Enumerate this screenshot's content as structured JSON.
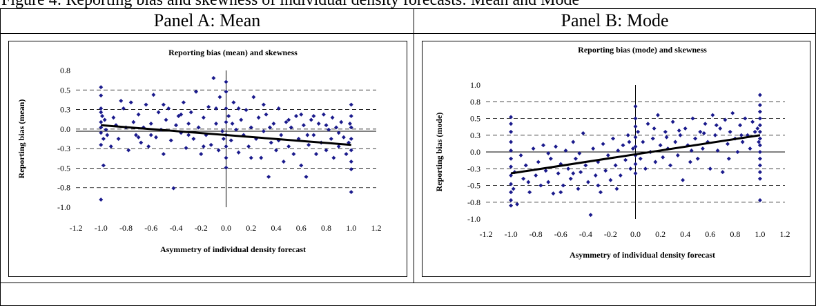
{
  "caption_fragment": "Figure 4: Reporting bias and skewness of individual density forecasts: Mean and Mode",
  "panels": [
    {
      "header": "Panel A: Mean"
    },
    {
      "header": "Panel B: Mode"
    }
  ],
  "chart_data": [
    {
      "type": "scatter",
      "title": "Reporting bias (mean) and skewness",
      "xlabel": "Asymmetry of individual density forecast",
      "ylabel": "Reporting bias (mean)",
      "xlim": [
        -1.2,
        1.2
      ],
      "ylim": [
        -1.0,
        0.8
      ],
      "xticks": [
        "-1.2",
        "-1.0",
        "-0.8",
        "-0.6",
        "-0.4",
        "-0.2",
        "0.0",
        "0.2",
        "0.4",
        "0.6",
        "0.8",
        "1.0",
        "1.2"
      ],
      "yticks": [
        "0.8",
        "0.5",
        "0.3",
        "0.0",
        "-0.3",
        "-0.5",
        "-0.8",
        "-1.0"
      ],
      "trendline": {
        "x": [
          -1.0,
          1.0
        ],
        "y": [
          0.08,
          -0.18
        ]
      },
      "marker_color": "#1a1a8c",
      "grid": "horizontal dashed",
      "points": [
        [
          -1.0,
          0.58
        ],
        [
          -1.0,
          0.47
        ],
        [
          -1.0,
          -0.9
        ],
        [
          -0.98,
          -0.45
        ],
        [
          -1.0,
          0.3
        ],
        [
          -1.0,
          0.25
        ],
        [
          -0.99,
          0.2
        ],
        [
          -1.0,
          0.12
        ],
        [
          -1.0,
          0.05
        ],
        [
          -1.0,
          -0.02
        ],
        [
          -0.98,
          -0.1
        ],
        [
          -1.0,
          -0.18
        ],
        [
          -0.97,
          0.15
        ],
        [
          -0.96,
          0.02
        ],
        [
          -0.95,
          -0.05
        ],
        [
          -0.9,
          0.18
        ],
        [
          -0.88,
          0.08
        ],
        [
          -0.86,
          -0.1
        ],
        [
          -0.82,
          0.3
        ],
        [
          -0.8,
          0.05
        ],
        [
          -0.78,
          -0.25
        ],
        [
          -0.76,
          0.38
        ],
        [
          -0.74,
          0.12
        ],
        [
          -0.72,
          -0.05
        ],
        [
          -0.7,
          0.22
        ],
        [
          -0.68,
          -0.15
        ],
        [
          -0.66,
          0.05
        ],
        [
          -0.64,
          0.35
        ],
        [
          -0.62,
          -0.2
        ],
        [
          -0.6,
          0.1
        ],
        [
          -0.58,
          0.48
        ],
        [
          -0.56,
          -0.08
        ],
        [
          -0.54,
          0.25
        ],
        [
          -0.52,
          0.02
        ],
        [
          -0.5,
          -0.3
        ],
        [
          -0.48,
          0.15
        ],
        [
          -0.46,
          0.3
        ],
        [
          -0.44,
          -0.12
        ],
        [
          -0.42,
          -0.75
        ],
        [
          -0.4,
          0.08
        ],
        [
          -0.38,
          0.2
        ],
        [
          -0.36,
          -0.02
        ],
        [
          -0.34,
          0.38
        ],
        [
          -0.32,
          -0.22
        ],
        [
          -0.3,
          0.1
        ],
        [
          -0.28,
          0.25
        ],
        [
          -0.26,
          -0.1
        ],
        [
          -0.24,
          0.52
        ],
        [
          -0.22,
          0.05
        ],
        [
          -0.2,
          -0.3
        ],
        [
          -0.18,
          0.18
        ],
        [
          -0.16,
          -0.05
        ],
        [
          -0.14,
          0.32
        ],
        [
          -0.12,
          -0.18
        ],
        [
          -0.1,
          0.7
        ],
        [
          -0.08,
          0.1
        ],
        [
          -0.06,
          -0.25
        ],
        [
          -0.05,
          0.45
        ],
        [
          -0.03,
          0.0
        ],
        [
          -0.02,
          -0.1
        ],
        [
          0.0,
          0.65
        ],
        [
          0.0,
          0.52
        ],
        [
          0.0,
          0.3
        ],
        [
          0.0,
          0.12
        ],
        [
          0.0,
          -0.05
        ],
        [
          0.0,
          -0.2
        ],
        [
          0.0,
          -0.35
        ],
        [
          0.0,
          -0.48
        ],
        [
          0.02,
          0.2
        ],
        [
          0.04,
          -0.12
        ],
        [
          0.06,
          0.38
        ],
        [
          0.08,
          0.02
        ],
        [
          0.1,
          -0.28
        ],
        [
          0.12,
          0.15
        ],
        [
          0.14,
          -0.05
        ],
        [
          0.16,
          0.28
        ],
        [
          0.18,
          -0.2
        ],
        [
          0.2,
          0.05
        ],
        [
          0.22,
          0.45
        ],
        [
          0.24,
          -0.1
        ],
        [
          0.26,
          0.18
        ],
        [
          0.28,
          -0.35
        ],
        [
          0.3,
          0.0
        ],
        [
          0.32,
          0.22
        ],
        [
          0.34,
          -0.6
        ],
        [
          0.36,
          -0.15
        ],
        [
          0.38,
          0.1
        ],
        [
          0.4,
          -0.25
        ],
        [
          0.42,
          0.3
        ],
        [
          0.44,
          -0.05
        ],
        [
          0.46,
          -0.4
        ],
        [
          0.48,
          0.12
        ],
        [
          0.5,
          -0.2
        ],
        [
          0.52,
          0.05
        ],
        [
          0.54,
          -0.3
        ],
        [
          0.56,
          0.2
        ],
        [
          0.58,
          -0.1
        ],
        [
          0.6,
          -0.45
        ],
        [
          0.62,
          0.08
        ],
        [
          0.64,
          -0.6
        ],
        [
          0.66,
          -0.18
        ],
        [
          0.68,
          0.15
        ],
        [
          0.7,
          -0.05
        ],
        [
          0.72,
          -0.3
        ],
        [
          0.74,
          0.1
        ],
        [
          0.76,
          -0.15
        ],
        [
          0.78,
          0.22
        ],
        [
          0.8,
          -0.25
        ],
        [
          0.82,
          0.02
        ],
        [
          0.84,
          -0.1
        ],
        [
          0.86,
          -0.35
        ],
        [
          0.88,
          0.05
        ],
        [
          0.9,
          -0.2
        ],
        [
          0.92,
          0.12
        ],
        [
          0.94,
          -0.08
        ],
        [
          0.96,
          -0.3
        ],
        [
          1.0,
          0.35
        ],
        [
          1.0,
          0.2
        ],
        [
          1.0,
          0.05
        ],
        [
          1.0,
          -0.1
        ],
        [
          1.0,
          -0.25
        ],
        [
          1.0,
          -0.4
        ],
        [
          1.0,
          -0.5
        ],
        [
          1.0,
          -0.8
        ],
        [
          0.98,
          -0.15
        ],
        [
          0.99,
          0.1
        ],
        [
          -0.84,
          0.4
        ],
        [
          -0.7,
          -0.08
        ],
        [
          -0.5,
          0.35
        ],
        [
          -0.36,
          0.22
        ],
        [
          -0.18,
          -0.2
        ],
        [
          -0.08,
          0.3
        ],
        [
          0.1,
          0.3
        ],
        [
          0.2,
          -0.35
        ],
        [
          0.3,
          0.35
        ],
        [
          0.42,
          -0.12
        ],
        [
          0.5,
          0.15
        ],
        [
          0.6,
          0.22
        ],
        [
          0.7,
          0.2
        ],
        [
          0.8,
          0.08
        ],
        [
          0.9,
          -0.02
        ],
        [
          -0.92,
          -0.2
        ],
        [
          -0.6,
          -0.05
        ],
        [
          -0.3,
          -0.05
        ],
        [
          0.05,
          0.1
        ],
        [
          0.35,
          0.05
        ],
        [
          0.65,
          -0.05
        ],
        [
          0.85,
          0.18
        ]
      ]
    },
    {
      "type": "scatter",
      "title": "Reporting bias (mode) and skewness",
      "xlabel": "Asymmetry of individual density forecast",
      "ylabel": "Reporting bias (mode)",
      "xlim": [
        -1.2,
        1.2
      ],
      "ylim": [
        -1.0,
        1.0
      ],
      "xticks": [
        "-1.2",
        "-1.0",
        "-0.8",
        "-0.6",
        "-0.4",
        "-0.2",
        "0.0",
        "0.2",
        "0.4",
        "0.6",
        "0.8",
        "1.0",
        "1.2"
      ],
      "yticks": [
        "1.0",
        "0.8",
        "0.5",
        "0.3",
        "0.0",
        "-0.3",
        "-0.5",
        "-0.8",
        "-1.0"
      ],
      "trendline": {
        "x": [
          -1.0,
          1.0
        ],
        "y": [
          -0.32,
          0.25
        ]
      },
      "marker_color": "#1a1a8c",
      "grid": "horizontal dashed",
      "points": [
        [
          -1.0,
          0.52
        ],
        [
          -1.0,
          0.42
        ],
        [
          -1.0,
          0.3
        ],
        [
          -1.0,
          0.15
        ],
        [
          -1.0,
          0.02
        ],
        [
          -1.0,
          -0.1
        ],
        [
          -1.0,
          -0.22
        ],
        [
          -1.0,
          -0.35
        ],
        [
          -1.0,
          -0.48
        ],
        [
          -1.0,
          -0.6
        ],
        [
          -1.0,
          -0.72
        ],
        [
          -1.0,
          -0.8
        ],
        [
          -0.98,
          -0.55
        ],
        [
          -0.97,
          -0.3
        ],
        [
          -0.95,
          -0.78
        ],
        [
          -0.92,
          -0.05
        ],
        [
          -0.9,
          -0.4
        ],
        [
          -0.88,
          -0.2
        ],
        [
          -0.85,
          -0.6
        ],
        [
          -0.82,
          0.05
        ],
        [
          -0.8,
          -0.35
        ],
        [
          -0.78,
          -0.15
        ],
        [
          -0.76,
          -0.5
        ],
        [
          -0.74,
          0.1
        ],
        [
          -0.72,
          -0.28
        ],
        [
          -0.7,
          -0.45
        ],
        [
          -0.68,
          -0.1
        ],
        [
          -0.66,
          -0.62
        ],
        [
          -0.64,
          0.08
        ],
        [
          -0.62,
          -0.32
        ],
        [
          -0.6,
          -0.18
        ],
        [
          -0.58,
          -0.5
        ],
        [
          -0.56,
          0.02
        ],
        [
          -0.54,
          -0.25
        ],
        [
          -0.52,
          -0.4
        ],
        [
          -0.5,
          0.15
        ],
        [
          -0.48,
          -0.1
        ],
        [
          -0.46,
          -0.55
        ],
        [
          -0.44,
          -0.3
        ],
        [
          -0.42,
          0.28
        ],
        [
          -0.4,
          -0.2
        ],
        [
          -0.38,
          -0.45
        ],
        [
          -0.36,
          -0.94
        ],
        [
          -0.34,
          0.05
        ],
        [
          -0.32,
          -0.35
        ],
        [
          -0.3,
          -0.15
        ],
        [
          -0.28,
          -0.6
        ],
        [
          -0.26,
          0.12
        ],
        [
          -0.24,
          -0.28
        ],
        [
          -0.22,
          -0.05
        ],
        [
          -0.2,
          -0.42
        ],
        [
          -0.18,
          0.2
        ],
        [
          -0.16,
          -0.2
        ],
        [
          -0.14,
          0.02
        ],
        [
          -0.12,
          -0.35
        ],
        [
          -0.1,
          0.1
        ],
        [
          -0.08,
          -0.12
        ],
        [
          -0.06,
          0.25
        ],
        [
          -0.04,
          -0.25
        ],
        [
          -0.02,
          0.05
        ],
        [
          0.0,
          0.68
        ],
        [
          0.0,
          0.5
        ],
        [
          0.0,
          0.38
        ],
        [
          0.0,
          0.22
        ],
        [
          0.0,
          0.08
        ],
        [
          0.0,
          -0.05
        ],
        [
          0.0,
          -0.18
        ],
        [
          0.0,
          -0.32
        ],
        [
          0.02,
          0.3
        ],
        [
          0.04,
          -0.1
        ],
        [
          0.06,
          0.15
        ],
        [
          0.08,
          -0.25
        ],
        [
          0.1,
          0.42
        ],
        [
          0.12,
          0.0
        ],
        [
          0.14,
          0.2
        ],
        [
          0.16,
          -0.15
        ],
        [
          0.18,
          0.55
        ],
        [
          0.2,
          0.1
        ],
        [
          0.22,
          -0.08
        ],
        [
          0.24,
          0.3
        ],
        [
          0.26,
          0.05
        ],
        [
          0.28,
          -0.2
        ],
        [
          0.3,
          0.45
        ],
        [
          0.32,
          0.15
        ],
        [
          0.34,
          -0.05
        ],
        [
          0.36,
          0.25
        ],
        [
          0.38,
          -0.42
        ],
        [
          0.4,
          0.35
        ],
        [
          0.42,
          0.1
        ],
        [
          0.44,
          -0.15
        ],
        [
          0.46,
          0.5
        ],
        [
          0.48,
          0.2
        ],
        [
          0.5,
          -0.1
        ],
        [
          0.52,
          0.3
        ],
        [
          0.54,
          0.05
        ],
        [
          0.56,
          0.42
        ],
        [
          0.58,
          0.15
        ],
        [
          0.6,
          -0.25
        ],
        [
          0.62,
          0.55
        ],
        [
          0.64,
          0.25
        ],
        [
          0.66,
          0.02
        ],
        [
          0.68,
          0.35
        ],
        [
          0.7,
          -0.3
        ],
        [
          0.72,
          0.48
        ],
        [
          0.74,
          0.12
        ],
        [
          0.76,
          0.3
        ],
        [
          0.78,
          0.58
        ],
        [
          0.8,
          0.2
        ],
        [
          0.82,
          0.0
        ],
        [
          0.84,
          0.4
        ],
        [
          0.86,
          0.15
        ],
        [
          0.88,
          0.5
        ],
        [
          0.9,
          0.25
        ],
        [
          0.92,
          0.05
        ],
        [
          0.94,
          0.45
        ],
        [
          0.96,
          0.3
        ],
        [
          1.0,
          0.85
        ],
        [
          1.0,
          0.7
        ],
        [
          1.0,
          0.6
        ],
        [
          1.0,
          0.5
        ],
        [
          1.0,
          0.4
        ],
        [
          1.0,
          0.3
        ],
        [
          1.0,
          0.2
        ],
        [
          1.0,
          0.1
        ],
        [
          1.0,
          0.0
        ],
        [
          1.0,
          -0.1
        ],
        [
          1.0,
          -0.2
        ],
        [
          1.0,
          -0.3
        ],
        [
          1.0,
          -0.4
        ],
        [
          1.0,
          -0.72
        ],
        [
          0.98,
          0.35
        ],
        [
          0.99,
          0.15
        ],
        [
          -0.86,
          -0.45
        ],
        [
          -0.6,
          -0.6
        ],
        [
          -0.45,
          -0.02
        ],
        [
          -0.3,
          -0.5
        ],
        [
          -0.15,
          -0.55
        ],
        [
          -0.05,
          0.15
        ],
        [
          0.15,
          0.35
        ],
        [
          0.25,
          0.22
        ],
        [
          0.35,
          0.32
        ],
        [
          0.45,
          0.02
        ],
        [
          0.55,
          0.28
        ],
        [
          0.65,
          0.4
        ],
        [
          0.75,
          -0.1
        ],
        [
          0.85,
          0.25
        ],
        [
          -0.7,
          -0.02
        ],
        [
          -0.5,
          -0.32
        ]
      ]
    }
  ]
}
